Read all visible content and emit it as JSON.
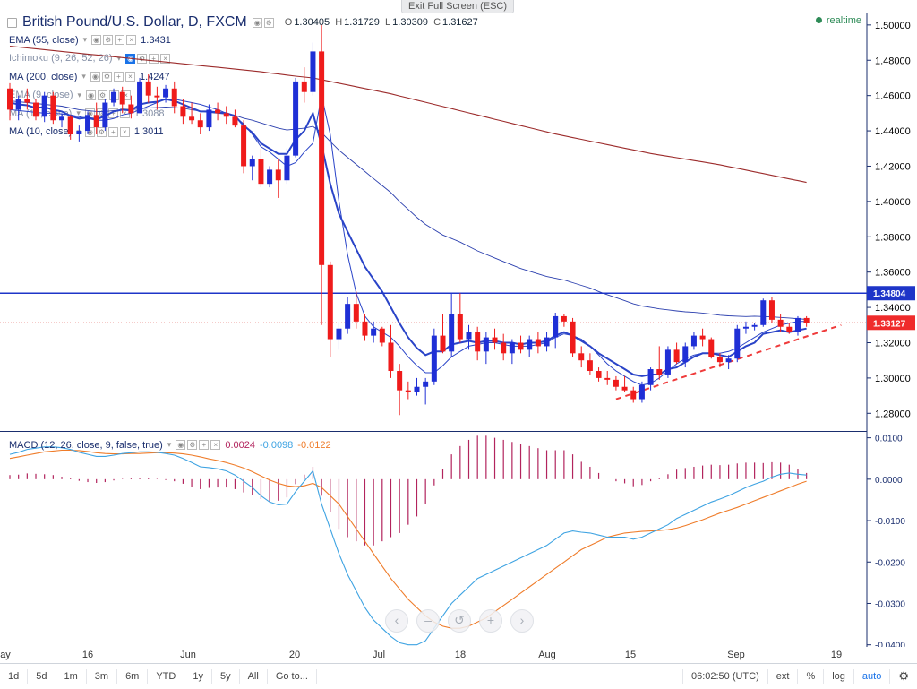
{
  "exit_fullscreen": "Exit Full Screen (ESC)",
  "header": {
    "title": "British Pound/U.S. Dollar, D, FXCM",
    "ohlc": {
      "o_label": "O",
      "o": "1.30405",
      "h_label": "H",
      "h": "1.31729",
      "l_label": "L",
      "l": "1.30309",
      "c_label": "C",
      "c": "1.31627"
    },
    "realtime": "realtime"
  },
  "indicators": [
    {
      "name": "EMA (55, close)",
      "value": "1.3431",
      "faded": false
    },
    {
      "name": "Ichimoku (9, 26, 52, 26)",
      "value": "",
      "faded": true
    },
    {
      "name": "MA (200, close)",
      "value": "1.4247",
      "faded": false
    },
    {
      "name": "EMA (9, close)",
      "value": "",
      "faded": true
    },
    {
      "name": "MA (15, close)",
      "value": "1.3088",
      "faded": true
    },
    {
      "name": "MA (10, close)",
      "value": "1.3011",
      "faded": false
    }
  ],
  "macd": {
    "name": "MACD (12, 26, close, 9, false, true)",
    "hist": "0.0024",
    "macd": "-0.0098",
    "signal": "-0.0122"
  },
  "price_axis": {
    "ticks": [
      "1.50000",
      "1.48000",
      "1.46000",
      "1.44000",
      "1.42000",
      "1.40000",
      "1.38000",
      "1.36000",
      "1.34000",
      "1.32000",
      "1.30000",
      "1.28000"
    ],
    "resistance_label": "1.34804",
    "last_label": "1.33127"
  },
  "macd_axis": {
    "ticks": [
      "0.0100",
      "0.0000",
      "-0.0100",
      "-0.0200",
      "-0.0300",
      "-0.0400"
    ]
  },
  "x_axis": {
    "ticks": [
      "ay",
      "16",
      "Jun",
      "20",
      "Jul",
      "18",
      "Aug",
      "15",
      "Sep",
      "19"
    ]
  },
  "nav_buttons": [
    "‹",
    "–",
    "↺",
    "+",
    "›"
  ],
  "bottom_bar": {
    "ranges": [
      "1d",
      "5d",
      "1m",
      "3m",
      "6m",
      "YTD",
      "1y",
      "5y",
      "All"
    ],
    "goto": "Go to...",
    "time": "06:02:50 (UTC)",
    "ext": "ext",
    "pct": "%",
    "log": "log",
    "auto": "auto",
    "settings_icon": "gear-icon"
  },
  "colors": {
    "up": "#1f2fd6",
    "down": "#ef1b1b",
    "ema55": "#2b3fae",
    "ma200": "#9c2b2b",
    "ma10": "#2a44c8",
    "macd": "#3ea3e2",
    "signal": "#ef7c2a",
    "hist": "#b2245d",
    "resistance": "#1e35c8",
    "trend": "#ef3b3b"
  },
  "chart_data": {
    "type": "candlestick",
    "title": "British Pound/U.S. Dollar, D, FXCM",
    "candles": [
      [
        1.464,
        1.467,
        1.446,
        1.452
      ],
      [
        1.452,
        1.46,
        1.446,
        1.458
      ],
      [
        1.458,
        1.464,
        1.452,
        1.456
      ],
      [
        1.456,
        1.458,
        1.446,
        1.448
      ],
      [
        1.448,
        1.462,
        1.445,
        1.46
      ],
      [
        1.46,
        1.462,
        1.444,
        1.446
      ],
      [
        1.446,
        1.45,
        1.442,
        1.448
      ],
      [
        1.448,
        1.449,
        1.435,
        1.438
      ],
      [
        1.438,
        1.443,
        1.434,
        1.44
      ],
      [
        1.44,
        1.451,
        1.438,
        1.449
      ],
      [
        1.449,
        1.456,
        1.438,
        1.442
      ],
      [
        1.442,
        1.458,
        1.44,
        1.456
      ],
      [
        1.456,
        1.464,
        1.454,
        1.462
      ],
      [
        1.462,
        1.465,
        1.45,
        1.455
      ],
      [
        1.455,
        1.46,
        1.447,
        1.45
      ],
      [
        1.45,
        1.47,
        1.45,
        1.468
      ],
      [
        1.468,
        1.472,
        1.456,
        1.46
      ],
      [
        1.46,
        1.465,
        1.452,
        1.459
      ],
      [
        1.459,
        1.466,
        1.456,
        1.464
      ],
      [
        1.464,
        1.468,
        1.45,
        1.454
      ],
      [
        1.454,
        1.458,
        1.444,
        1.448
      ],
      [
        1.448,
        1.456,
        1.444,
        1.446
      ],
      [
        1.446,
        1.45,
        1.438,
        1.442
      ],
      [
        1.442,
        1.455,
        1.44,
        1.452
      ],
      [
        1.452,
        1.456,
        1.446,
        1.45
      ],
      [
        1.45,
        1.454,
        1.444,
        1.448
      ],
      [
        1.448,
        1.452,
        1.442,
        1.443
      ],
      [
        1.443,
        1.446,
        1.416,
        1.42
      ],
      [
        1.42,
        1.426,
        1.412,
        1.424
      ],
      [
        1.424,
        1.43,
        1.408,
        1.41
      ],
      [
        1.41,
        1.42,
        1.408,
        1.418
      ],
      [
        1.418,
        1.424,
        1.402,
        1.412
      ],
      [
        1.412,
        1.43,
        1.41,
        1.426
      ],
      [
        1.426,
        1.47,
        1.425,
        1.468
      ],
      [
        1.468,
        1.476,
        1.456,
        1.462
      ],
      [
        1.462,
        1.49,
        1.46,
        1.485
      ],
      [
        1.485,
        1.5,
        1.33,
        1.364
      ],
      [
        1.364,
        1.366,
        1.312,
        1.322
      ],
      [
        1.322,
        1.332,
        1.316,
        1.328
      ],
      [
        1.328,
        1.346,
        1.325,
        1.342
      ],
      [
        1.342,
        1.349,
        1.328,
        1.332
      ],
      [
        1.332,
        1.336,
        1.321,
        1.324
      ],
      [
        1.324,
        1.332,
        1.32,
        1.328
      ],
      [
        1.328,
        1.329,
        1.318,
        1.32
      ],
      [
        1.32,
        1.33,
        1.3,
        1.304
      ],
      [
        1.304,
        1.308,
        1.279,
        1.293
      ],
      [
        1.293,
        1.298,
        1.288,
        1.292
      ],
      [
        1.292,
        1.3,
        1.29,
        1.295
      ],
      [
        1.295,
        1.3,
        1.285,
        1.298
      ],
      [
        1.298,
        1.328,
        1.296,
        1.324
      ],
      [
        1.324,
        1.336,
        1.314,
        1.315
      ],
      [
        1.315,
        1.348,
        1.312,
        1.336
      ],
      [
        1.336,
        1.348,
        1.32,
        1.322
      ],
      [
        1.322,
        1.33,
        1.316,
        1.326
      ],
      [
        1.326,
        1.329,
        1.31,
        1.315
      ],
      [
        1.315,
        1.326,
        1.308,
        1.323
      ],
      [
        1.323,
        1.328,
        1.316,
        1.32
      ],
      [
        1.32,
        1.325,
        1.31,
        1.314
      ],
      [
        1.314,
        1.322,
        1.308,
        1.32
      ],
      [
        1.32,
        1.324,
        1.314,
        1.316
      ],
      [
        1.316,
        1.324,
        1.312,
        1.322
      ],
      [
        1.322,
        1.326,
        1.314,
        1.318
      ],
      [
        1.318,
        1.326,
        1.315,
        1.323
      ],
      [
        1.323,
        1.337,
        1.317,
        1.335
      ],
      [
        1.335,
        1.336,
        1.329,
        1.332
      ],
      [
        1.332,
        1.334,
        1.312,
        1.314
      ],
      [
        1.314,
        1.318,
        1.306,
        1.31
      ],
      [
        1.31,
        1.314,
        1.302,
        1.304
      ],
      [
        1.304,
        1.306,
        1.298,
        1.3
      ],
      [
        1.3,
        1.304,
        1.296,
        1.299
      ],
      [
        1.299,
        1.301,
        1.293,
        1.295
      ],
      [
        1.295,
        1.301,
        1.292,
        1.293
      ],
      [
        1.293,
        1.295,
        1.286,
        1.288
      ],
      [
        1.288,
        1.298,
        1.286,
        1.296
      ],
      [
        1.296,
        1.306,
        1.293,
        1.305
      ],
      [
        1.305,
        1.318,
        1.299,
        1.302
      ],
      [
        1.302,
        1.318,
        1.3,
        1.316
      ],
      [
        1.316,
        1.32,
        1.308,
        1.309
      ],
      [
        1.309,
        1.32,
        1.306,
        1.318
      ],
      [
        1.318,
        1.326,
        1.316,
        1.324
      ],
      [
        1.324,
        1.328,
        1.318,
        1.322
      ],
      [
        1.322,
        1.323,
        1.311,
        1.312
      ],
      [
        1.312,
        1.314,
        1.306,
        1.309
      ],
      [
        1.309,
        1.313,
        1.305,
        1.311
      ],
      [
        1.311,
        1.33,
        1.309,
        1.328
      ],
      [
        1.328,
        1.332,
        1.325,
        1.329
      ],
      [
        1.329,
        1.331,
        1.327,
        1.33
      ],
      [
        1.33,
        1.345,
        1.329,
        1.344
      ],
      [
        1.344,
        1.346,
        1.331,
        1.333
      ],
      [
        1.333,
        1.336,
        1.326,
        1.329
      ],
      [
        1.329,
        1.331,
        1.325,
        1.326
      ],
      [
        1.326,
        1.335,
        1.324,
        1.334
      ],
      [
        1.334,
        1.335,
        1.329,
        1.3313
      ]
    ],
    "ema55": [
      1.457,
      1.4565,
      1.456,
      1.4555,
      1.455,
      1.4545,
      1.454,
      1.453,
      1.452,
      1.4515,
      1.451,
      1.451,
      1.4515,
      1.452,
      1.452,
      1.4525,
      1.453,
      1.4532,
      1.4535,
      1.4532,
      1.4528,
      1.452,
      1.4512,
      1.4505,
      1.45,
      1.4495,
      1.4488,
      1.4472,
      1.446,
      1.4445,
      1.443,
      1.4415,
      1.4405,
      1.441,
      1.4415,
      1.4425,
      1.439,
      1.434,
      1.429,
      1.425,
      1.421,
      1.417,
      1.413,
      1.409,
      1.405,
      1.4,
      1.3955,
      1.391,
      1.387,
      1.384,
      1.381,
      1.379,
      1.377,
      1.3745,
      1.372,
      1.37,
      1.368,
      1.366,
      1.364,
      1.362,
      1.3605,
      1.359,
      1.3575,
      1.3565,
      1.3555,
      1.354,
      1.3525,
      1.351,
      1.349,
      1.3472,
      1.3455,
      1.3438,
      1.342,
      1.3408,
      1.34,
      1.3392,
      1.3386,
      1.338,
      1.3375,
      1.3372,
      1.3368,
      1.3362,
      1.3356,
      1.3352,
      1.335,
      1.3348,
      1.335,
      1.3348,
      1.3346,
      1.3343,
      1.334,
      1.3336,
      1.3332
    ],
    "ma200": [
      1.488,
      1.4875,
      1.487,
      1.4865,
      1.486,
      1.4855,
      1.485,
      1.4845,
      1.484,
      1.4835,
      1.483,
      1.4825,
      1.482,
      1.4815,
      1.481,
      1.4805,
      1.48,
      1.4795,
      1.479,
      1.4785,
      1.478,
      1.4775,
      1.477,
      1.4765,
      1.476,
      1.4755,
      1.475,
      1.4745,
      1.474,
      1.4735,
      1.4728,
      1.4722,
      1.4716,
      1.471,
      1.4705,
      1.47,
      1.469,
      1.468,
      1.467,
      1.466,
      1.465,
      1.464,
      1.463,
      1.462,
      1.461,
      1.4598,
      1.4586,
      1.4574,
      1.4562,
      1.455,
      1.4538,
      1.4526,
      1.4514,
      1.4502,
      1.449,
      1.4478,
      1.4466,
      1.4454,
      1.4442,
      1.443,
      1.4418,
      1.4406,
      1.4394,
      1.4382,
      1.4372,
      1.4362,
      1.4352,
      1.4342,
      1.4332,
      1.4322,
      1.4312,
      1.4302,
      1.4292,
      1.4282,
      1.4272,
      1.4264,
      1.4256,
      1.4248,
      1.424,
      1.4232,
      1.4224,
      1.4216,
      1.4208,
      1.4198,
      1.4188,
      1.4178,
      1.4168,
      1.4158,
      1.4148,
      1.4138,
      1.4128,
      1.4118,
      1.4108
    ],
    "ma10": [
      1.452,
      1.4515,
      1.451,
      1.4505,
      1.45,
      1.45,
      1.4495,
      1.449,
      1.448,
      1.447,
      1.446,
      1.446,
      1.447,
      1.449,
      1.45,
      1.452,
      1.454,
      1.456,
      1.458,
      1.458,
      1.457,
      1.456,
      1.455,
      1.4535,
      1.452,
      1.45,
      1.448,
      1.444,
      1.438,
      1.431,
      1.428,
      1.424,
      1.42,
      1.422,
      1.428,
      1.433,
      1.46,
      1.438,
      1.4,
      1.37,
      1.348,
      1.335,
      1.329,
      1.326,
      1.323,
      1.318,
      1.312,
      1.307,
      1.303,
      1.303,
      1.307,
      1.312,
      1.315,
      1.318,
      1.319,
      1.32,
      1.32,
      1.319,
      1.318,
      1.318,
      1.318,
      1.319,
      1.32,
      1.323,
      1.325,
      1.324,
      1.322,
      1.318,
      1.313,
      1.308,
      1.304,
      1.301,
      1.298,
      1.296,
      1.297,
      1.3,
      1.304,
      1.308,
      1.311,
      1.313,
      1.314,
      1.314,
      1.314,
      1.315,
      1.317,
      1.32,
      1.323,
      1.326,
      1.328,
      1.33,
      1.331,
      1.332,
      1.332
    ],
    "ema9": [
      1.456,
      1.455,
      1.4545,
      1.453,
      1.4535,
      1.452,
      1.451,
      1.4485,
      1.447,
      1.4475,
      1.4465,
      1.4485,
      1.451,
      1.452,
      1.4515,
      1.455,
      1.456,
      1.4565,
      1.458,
      1.457,
      1.455,
      1.453,
      1.451,
      1.451,
      1.4505,
      1.45,
      1.4485,
      1.443,
      1.439,
      1.433,
      1.43,
      1.427,
      1.427,
      1.435,
      1.44,
      1.45,
      1.432,
      1.41,
      1.393,
      1.383,
      1.373,
      1.363,
      1.356,
      1.349,
      1.34,
      1.331,
      1.323,
      1.317,
      1.313,
      1.315,
      1.315,
      1.319,
      1.32,
      1.321,
      1.32,
      1.321,
      1.321,
      1.32,
      1.32,
      1.319,
      1.32,
      1.32,
      1.321,
      1.324,
      1.326,
      1.324,
      1.321,
      1.318,
      1.314,
      1.311,
      1.308,
      1.305,
      1.302,
      1.301,
      1.302,
      1.302,
      1.305,
      1.306,
      1.309,
      1.312,
      1.314,
      1.314,
      1.313,
      1.312,
      1.315,
      1.318,
      1.32,
      1.325,
      1.326,
      1.327,
      1.326,
      1.327,
      1.328
    ],
    "resistance": 1.34804,
    "last_price": 1.33127,
    "trendline": [
      [
        70,
        1.288
      ],
      [
        96,
        1.33
      ]
    ],
    "macd_line": [
      0.006,
      0.0065,
      0.0072,
      0.0075,
      0.0078,
      0.0078,
      0.0076,
      0.0072,
      0.0065,
      0.006,
      0.0055,
      0.0055,
      0.0058,
      0.0062,
      0.0064,
      0.0066,
      0.0066,
      0.0065,
      0.0062,
      0.0058,
      0.005,
      0.004,
      0.003,
      0.0028,
      0.0025,
      0.002,
      0.001,
      -0.0005,
      -0.002,
      -0.004,
      -0.0055,
      -0.0062,
      -0.006,
      -0.003,
      -0.0005,
      0.002,
      -0.006,
      -0.012,
      -0.018,
      -0.023,
      -0.027,
      -0.031,
      -0.034,
      -0.036,
      -0.038,
      -0.0395,
      -0.04,
      -0.04,
      -0.039,
      -0.036,
      -0.033,
      -0.03,
      -0.028,
      -0.026,
      -0.024,
      -0.023,
      -0.022,
      -0.021,
      -0.02,
      -0.019,
      -0.018,
      -0.017,
      -0.016,
      -0.0145,
      -0.013,
      -0.0125,
      -0.0128,
      -0.013,
      -0.0135,
      -0.014,
      -0.014,
      -0.014,
      -0.0145,
      -0.014,
      -0.013,
      -0.012,
      -0.011,
      -0.0095,
      -0.0085,
      -0.0075,
      -0.0065,
      -0.0055,
      -0.0048,
      -0.004,
      -0.003,
      -0.002,
      -0.0012,
      -0.0005,
      0.0005,
      0.0012,
      0.0015,
      0.0012,
      0.001
    ],
    "signal_line": [
      0.005,
      0.0054,
      0.0058,
      0.0062,
      0.0066,
      0.0068,
      0.007,
      0.007,
      0.0069,
      0.0067,
      0.0064,
      0.0062,
      0.0061,
      0.0061,
      0.0062,
      0.0062,
      0.0063,
      0.0064,
      0.0064,
      0.0063,
      0.0061,
      0.0058,
      0.0054,
      0.0049,
      0.0045,
      0.004,
      0.0034,
      0.0027,
      0.0018,
      0.0008,
      -0.0002,
      -0.001,
      -0.0016,
      -0.0018,
      -0.0016,
      -0.001,
      -0.002,
      -0.004,
      -0.006,
      -0.009,
      -0.012,
      -0.015,
      -0.018,
      -0.021,
      -0.024,
      -0.0265,
      -0.029,
      -0.031,
      -0.033,
      -0.0345,
      -0.0355,
      -0.036,
      -0.036,
      -0.0355,
      -0.0345,
      -0.0335,
      -0.032,
      -0.0305,
      -0.029,
      -0.0275,
      -0.026,
      -0.0245,
      -0.023,
      -0.0215,
      -0.02,
      -0.0185,
      -0.017,
      -0.016,
      -0.015,
      -0.014,
      -0.0135,
      -0.013,
      -0.0128,
      -0.0126,
      -0.0125,
      -0.0124,
      -0.0122,
      -0.0118,
      -0.0112,
      -0.0105,
      -0.0098,
      -0.009,
      -0.0082,
      -0.0075,
      -0.0068,
      -0.006,
      -0.0052,
      -0.0044,
      -0.0036,
      -0.0028,
      -0.002,
      -0.0012,
      -0.0005
    ],
    "x_ticks": [
      "ay",
      "16",
      "Jun",
      "20",
      "Jul",
      "18",
      "Aug",
      "15",
      "Sep",
      "19"
    ],
    "ylim": [
      1.27,
      1.505
    ],
    "macd_ylim": [
      -0.0405,
      0.011
    ]
  }
}
